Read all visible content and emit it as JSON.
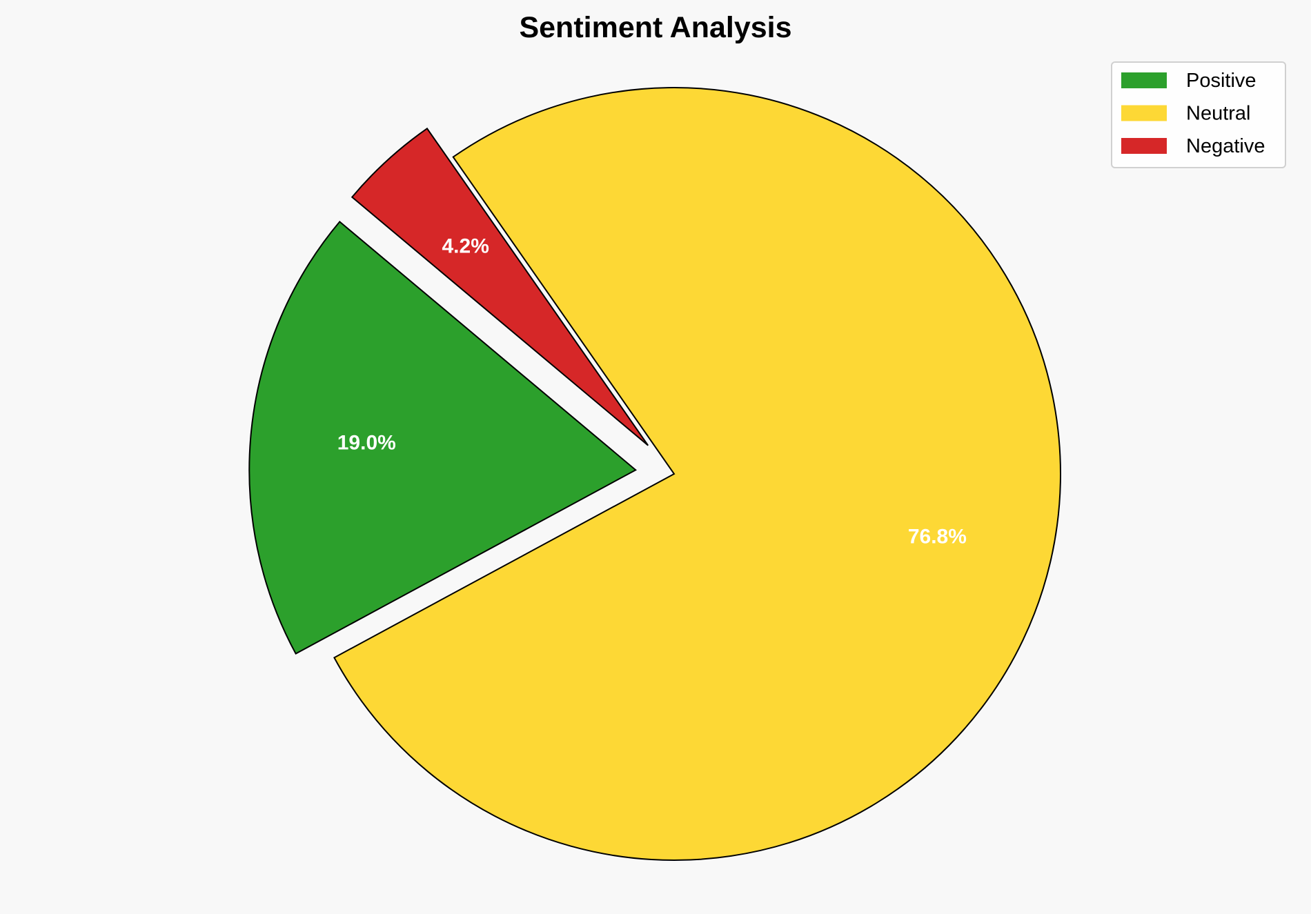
{
  "chart_data": {
    "type": "pie",
    "title": "Sentiment Analysis",
    "categories": [
      "Positive",
      "Neutral",
      "Negative"
    ],
    "values": [
      19.0,
      76.8,
      4.2
    ],
    "labels": [
      "19.0%",
      "76.8%",
      "4.2%"
    ],
    "colors": [
      "#2ca02c",
      "#fdd835",
      "#d62728"
    ],
    "explode": [
      0.1,
      0,
      0.1
    ],
    "start_angle": 140,
    "legend": {
      "placement": "top-right",
      "entries": [
        "Positive",
        "Neutral",
        "Negative"
      ]
    },
    "edge_color": "#000000",
    "background": "#f8f8f8"
  }
}
